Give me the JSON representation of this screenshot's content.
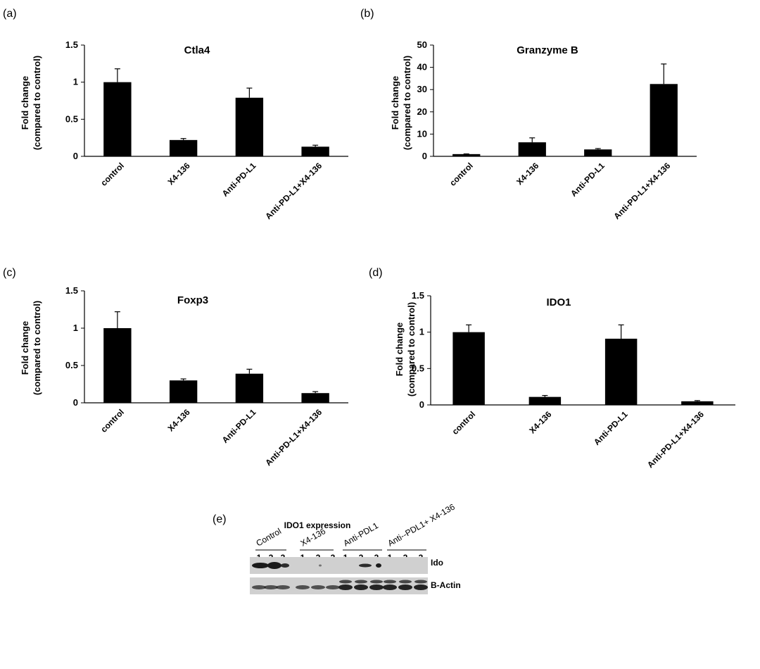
{
  "chart_data": [
    {
      "panel": "(a)",
      "type": "bar",
      "title": "Ctla4",
      "ylabel": "Fold change (compared to control)",
      "ylabel_lines": [
        "Fold change",
        "(compared to control)"
      ],
      "categories": [
        "control",
        "X4-136",
        "Anti-PD-L1",
        "Anti-PD-L1+X4-136"
      ],
      "values": [
        1.0,
        0.22,
        0.79,
        0.13
      ],
      "errors": [
        0.18,
        0.02,
        0.13,
        0.02
      ],
      "ylim": [
        0,
        1.5
      ],
      "yticks": [
        "0",
        "0.5",
        "1",
        "1.5"
      ],
      "ytick_values": [
        0,
        0.5,
        1,
        1.5
      ],
      "grid": false
    },
    {
      "panel": "(b)",
      "type": "bar",
      "title": "Granzyme B",
      "ylabel": "Fold change (compared to control)",
      "ylabel_lines": [
        "Fold change",
        "(compared to control)"
      ],
      "categories": [
        "control",
        "X4-136",
        "Anti-PD-L1",
        "Anti-PD-L1+X4-136"
      ],
      "values": [
        1.0,
        6.3,
        3.1,
        32.5
      ],
      "errors": [
        0.1,
        2.0,
        0.4,
        9.0
      ],
      "ylim": [
        0,
        50
      ],
      "yticks": [
        "0",
        "10",
        "20",
        "30",
        "40",
        "50"
      ],
      "ytick_values": [
        0,
        10,
        20,
        30,
        40,
        50
      ],
      "grid": false
    },
    {
      "panel": "(c)",
      "type": "bar",
      "title": "Foxp3",
      "ylabel": "Fold change (compared to control)",
      "ylabel_lines": [
        "Fold change",
        "(compared to control)"
      ],
      "categories": [
        "control",
        "X4-136",
        "Anti-PD-L1",
        "Anti-PD-L1+X4-136"
      ],
      "values": [
        1.0,
        0.3,
        0.39,
        0.13
      ],
      "errors": [
        0.22,
        0.02,
        0.06,
        0.02
      ],
      "ylim": [
        0,
        1.5
      ],
      "yticks": [
        "0",
        "0.5",
        "1",
        "1.5"
      ],
      "ytick_values": [
        0,
        0.5,
        1,
        1.5
      ],
      "grid": false
    },
    {
      "panel": "(d)",
      "type": "bar",
      "title": "IDO1",
      "ylabel": "Fold change (compared to control)",
      "ylabel_lines": [
        "Fold change",
        "(compared to control)"
      ],
      "categories": [
        "control",
        "X4-136",
        "Anti-PD-L1",
        "Anti-PD-L1+X4-136"
      ],
      "values": [
        1.0,
        0.11,
        0.91,
        0.05
      ],
      "errors": [
        0.1,
        0.02,
        0.19,
        0.01
      ],
      "ylim": [
        0,
        1.5
      ],
      "yticks": [
        "0",
        "0.5",
        "1",
        "1.5"
      ],
      "ytick_values": [
        0,
        0.5,
        1,
        1.5
      ],
      "grid": false
    }
  ],
  "western_blot": {
    "panel": "(e)",
    "title": "IDO1 expression",
    "groups": [
      "Control",
      "X4-136",
      "Anti-PDL1",
      "Anti--PDL1+ X4-136"
    ],
    "lanes": [
      "1",
      "2",
      "3"
    ],
    "rows": [
      "Ido",
      "B-Actin"
    ],
    "colors": {
      "band": "#1a1a1a",
      "background": "#d0d0d0"
    }
  },
  "colors": {
    "bar": "#000000",
    "axis": "#000000"
  }
}
